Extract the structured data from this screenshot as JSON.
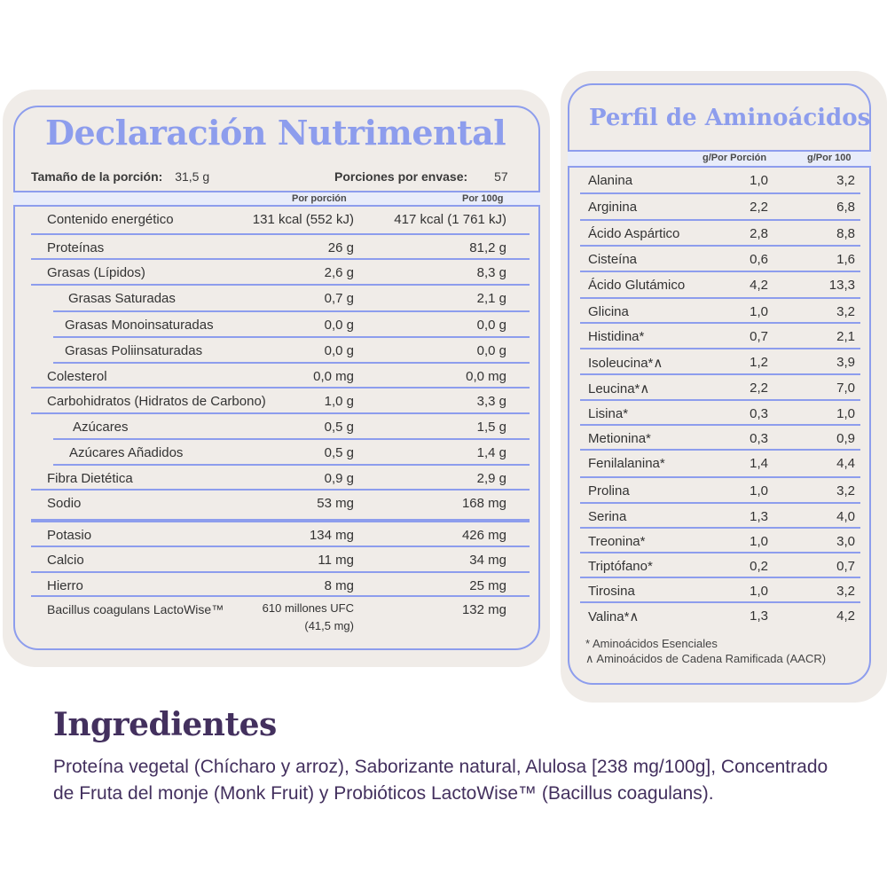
{
  "nutrition": {
    "title": "Declaración Nutrimental",
    "serving_size_label": "Tamaño de la porción:",
    "serving_size_value": "31,5 g",
    "servings_label": "Porciones por envase:",
    "servings_value": "57",
    "col_portion": "Por porción",
    "col_100g": "Por 100g",
    "rows": [
      {
        "label": "Contenido energético",
        "portion": "131 kcal (552 kJ)",
        "per100": "417 kcal (1 761 kJ)"
      },
      {
        "label": "Proteínas",
        "portion": "26 g",
        "per100": "81,2 g"
      },
      {
        "label": "Grasas (Lípidos)",
        "portion": "2,6 g",
        "per100": "8,3 g"
      },
      {
        "label": "Grasas Saturadas",
        "portion": "0,7 g",
        "per100": "2,1 g"
      },
      {
        "label": "Grasas Monoinsaturadas",
        "portion": "0,0 g",
        "per100": "0,0 g"
      },
      {
        "label": "Grasas Poliinsaturadas",
        "portion": "0,0 g",
        "per100": "0,0 g"
      },
      {
        "label": "Colesterol",
        "portion": "0,0 mg",
        "per100": "0,0 mg"
      },
      {
        "label": "Carbohidratos (Hidratos de Carbono)",
        "portion": "1,0 g",
        "per100": "3,3 g"
      },
      {
        "label": "Azúcares",
        "portion": "0,5 g",
        "per100": "1,5 g"
      },
      {
        "label": "Azúcares Añadidos",
        "portion": "0,5 g",
        "per100": "1,4 g"
      },
      {
        "label": "Fibra Dietética",
        "portion": "0,9 g",
        "per100": "2,9 g"
      },
      {
        "label": "Sodio",
        "portion": "53 mg",
        "per100": "168 mg"
      },
      {
        "label": "Potasio",
        "portion": "134 mg",
        "per100": "426 mg"
      },
      {
        "label": "Calcio",
        "portion": "11 mg",
        "per100": "34 mg"
      },
      {
        "label": "Hierro",
        "portion": "8 mg",
        "per100": "25 mg"
      },
      {
        "label": "Bacillus coagulans LactoWise™",
        "portion_line1": "610 millones UFC",
        "portion_line2": "(41,5 mg)",
        "per100": "132 mg"
      }
    ]
  },
  "amino": {
    "title": "Perfil de Aminoácidos",
    "col_portion": "g/Por Porción",
    "col_100": "g/Por 100",
    "rows": [
      {
        "label": "Alanina",
        "portion": "1,0",
        "per100": "3,2"
      },
      {
        "label": "Arginina",
        "portion": "2,2",
        "per100": "6,8"
      },
      {
        "label": "Ácido Aspártico",
        "portion": "2,8",
        "per100": "8,8"
      },
      {
        "label": "Cisteína",
        "portion": "0,6",
        "per100": "1,6"
      },
      {
        "label": "Ácido Glutámico",
        "portion": "4,2",
        "per100": "13,3"
      },
      {
        "label": "Glicina",
        "portion": "1,0",
        "per100": "3,2"
      },
      {
        "label": "Histidina*",
        "portion": "0,7",
        "per100": "2,1"
      },
      {
        "label": "Isoleucina*∧",
        "portion": "1,2",
        "per100": "3,9"
      },
      {
        "label": "Leucina*∧",
        "portion": "2,2",
        "per100": "7,0"
      },
      {
        "label": "Lisina*",
        "portion": "0,3",
        "per100": "1,0"
      },
      {
        "label": "Metionina*",
        "portion": "0,3",
        "per100": "0,9"
      },
      {
        "label": "Fenilalanina*",
        "portion": "1,4",
        "per100": "4,4"
      },
      {
        "label": "Prolina",
        "portion": "1,0",
        "per100": "3,2"
      },
      {
        "label": "Serina",
        "portion": "1,3",
        "per100": "4,0"
      },
      {
        "label": "Treonina*",
        "portion": "1,0",
        "per100": "3,0"
      },
      {
        "label": "Triptófano*",
        "portion": "0,2",
        "per100": "0,7"
      },
      {
        "label": "Tirosina",
        "portion": "1,0",
        "per100": "3,2"
      },
      {
        "label": "Valina*∧",
        "portion": "1,3",
        "per100": "4,2"
      }
    ],
    "note_essential": "* Aminoácidos Esenciales",
    "note_branched": "∧ Aminoácidos de Cadena Ramificada (AACR)"
  },
  "ingredients": {
    "title": "Ingredientes",
    "text": "Proteína vegetal (Chícharo y arroz), Saborizante natural, Alulosa [238 mg/100g], Concentrado de Fruta del monje (Monk Fruit) y Probióticos LactoWise™ (Bacillus coagulans)."
  },
  "colors": {
    "accent": "#8d9ded",
    "card_bg": "#f0ece8",
    "header_bg": "#e8ecfa",
    "ingredients_text": "#43305e"
  }
}
